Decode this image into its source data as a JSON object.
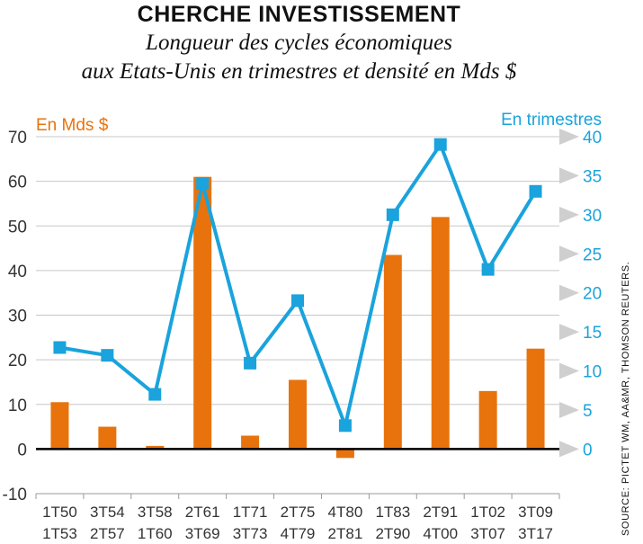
{
  "title": "CHERCHE INVESTISSEMENT",
  "subtitle_line1": "Longueur des cycles économiques",
  "subtitle_line2": "aux Etats-Unis en trimestres et densité en Mds $",
  "source": "SOURCE: PICTET WM, AA&MR, THOMSON REUTERS.",
  "colors": {
    "orange": "#E8730C",
    "blue": "#1AA3DC",
    "grid": "#C8C8C8",
    "arrow": "#CFCFCF",
    "text": "#333333"
  },
  "chart_data": {
    "type": "bar+line",
    "categories": [
      [
        "1T50",
        "1T53"
      ],
      [
        "3T54",
        "2T57"
      ],
      [
        "3T58",
        "1T60"
      ],
      [
        "2T61",
        "3T69"
      ],
      [
        "1T71",
        "3T73"
      ],
      [
        "2T75",
        "4T79"
      ],
      [
        "4T80",
        "2T81"
      ],
      [
        "1T83",
        "2T90"
      ],
      [
        "2T91",
        "4T00"
      ],
      [
        "1T02",
        "3T07"
      ],
      [
        "3T09",
        "3T17"
      ]
    ],
    "left_axis": {
      "label": "En Mds $",
      "ticks": [
        70,
        60,
        50,
        40,
        30,
        20,
        10,
        0,
        -10
      ],
      "ylim": [
        -10,
        70
      ]
    },
    "right_axis": {
      "label": "En trimestres",
      "ticks": [
        40,
        35,
        30,
        25,
        20,
        15,
        10,
        5,
        0
      ],
      "ylim": [
        0,
        40
      ]
    },
    "series": [
      {
        "type": "bar",
        "axis": "left",
        "values": [
          10.5,
          5,
          0.7,
          61,
          3,
          15.5,
          -2,
          43.5,
          52,
          13,
          22.5
        ]
      },
      {
        "type": "line",
        "axis": "right",
        "values": [
          13,
          12,
          7,
          34,
          11,
          19,
          3,
          30,
          39,
          23,
          33
        ]
      }
    ],
    "grid": "horizontal"
  }
}
